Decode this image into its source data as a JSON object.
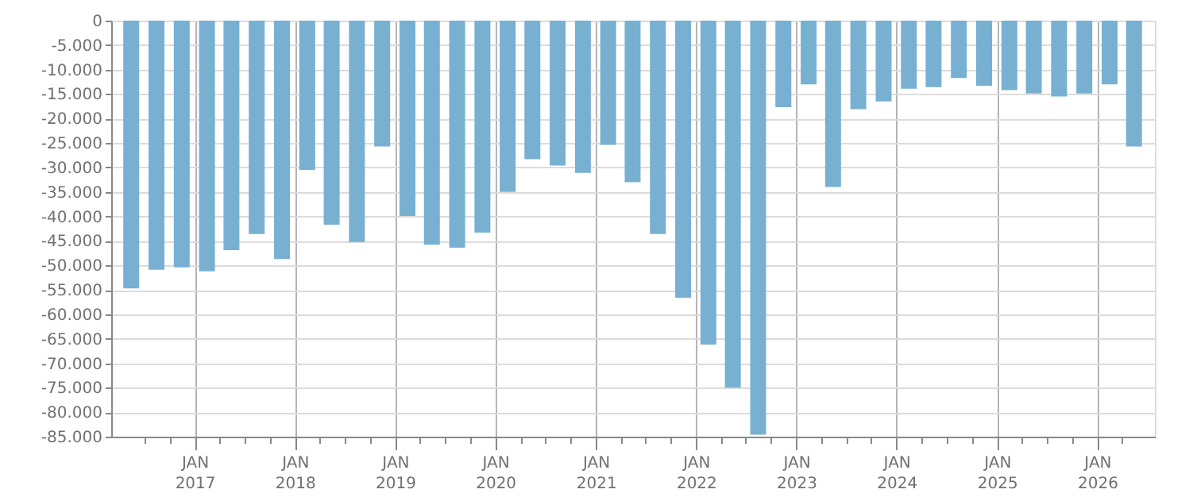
{
  "chart_data": {
    "type": "bar",
    "color": "#78b0d2",
    "x": [
      "2016-05-15",
      "2016-08-15",
      "2016-11-15",
      "2017-02-15",
      "2017-05-15",
      "2017-08-15",
      "2017-11-15",
      "2018-02-15",
      "2018-05-15",
      "2018-08-15",
      "2018-11-15",
      "2019-02-15",
      "2019-05-15",
      "2019-08-15",
      "2019-11-15",
      "2020-02-15",
      "2020-05-15",
      "2020-08-15",
      "2020-11-15",
      "2021-02-15",
      "2021-05-15",
      "2021-08-15",
      "2021-11-15",
      "2022-02-15",
      "2022-05-15",
      "2022-08-15",
      "2022-11-15",
      "2023-02-15",
      "2023-05-15",
      "2023-08-15",
      "2023-11-15",
      "2024-02-15",
      "2024-05-15",
      "2024-08-15",
      "2024-11-15",
      "2025-02-15",
      "2025-05-15",
      "2025-08-15",
      "2025-11-15",
      "2026-02-15",
      "2026-05-15"
    ],
    "values": [
      -54700,
      -50900,
      -50400,
      -51200,
      -46900,
      -43600,
      -48700,
      -30500,
      -41700,
      -45200,
      -25700,
      -39900,
      -45800,
      -46400,
      -43300,
      -35000,
      -28300,
      -29600,
      -31100,
      -25400,
      -33000,
      -43600,
      -56600,
      -66200,
      -75000,
      -84600,
      -17700,
      -13000,
      -34000,
      -18100,
      -16500,
      -13900,
      -13600,
      -11700,
      -13300,
      -14200,
      -14900,
      -15500,
      -14900,
      -13000,
      -25700
    ],
    "xlim": [
      "2016-04-01",
      "2026-07-01"
    ],
    "xticks": [
      {
        "value": "2016-07-01",
        "label": null
      },
      {
        "value": "2016-10-01",
        "label": null
      },
      {
        "value": "2017-01-01",
        "label": "JAN\n2017"
      },
      {
        "value": "2017-04-01",
        "label": null
      },
      {
        "value": "2017-07-01",
        "label": null
      },
      {
        "value": "2017-10-01",
        "label": null
      },
      {
        "value": "2018-01-01",
        "label": "JAN\n2018"
      },
      {
        "value": "2018-04-01",
        "label": null
      },
      {
        "value": "2018-07-01",
        "label": null
      },
      {
        "value": "2018-10-01",
        "label": null
      },
      {
        "value": "2019-01-01",
        "label": "JAN\n2019"
      },
      {
        "value": "2019-04-01",
        "label": null
      },
      {
        "value": "2019-07-01",
        "label": null
      },
      {
        "value": "2019-10-01",
        "label": null
      },
      {
        "value": "2020-01-01",
        "label": "JAN\n2020"
      },
      {
        "value": "2020-04-01",
        "label": null
      },
      {
        "value": "2020-07-01",
        "label": null
      },
      {
        "value": "2020-10-01",
        "label": null
      },
      {
        "value": "2021-01-01",
        "label": "JAN\n2021"
      },
      {
        "value": "2021-04-01",
        "label": null
      },
      {
        "value": "2021-07-01",
        "label": null
      },
      {
        "value": "2021-10-01",
        "label": null
      },
      {
        "value": "2022-01-01",
        "label": "JAN\n2022"
      },
      {
        "value": "2022-04-01",
        "label": null
      },
      {
        "value": "2022-07-01",
        "label": null
      },
      {
        "value": "2022-10-01",
        "label": null
      },
      {
        "value": "2023-01-01",
        "label": "JAN\n2023"
      },
      {
        "value": "2023-04-01",
        "label": null
      },
      {
        "value": "2023-07-01",
        "label": null
      },
      {
        "value": "2023-10-01",
        "label": null
      },
      {
        "value": "2024-01-01",
        "label": "JAN\n2024"
      },
      {
        "value": "2024-04-01",
        "label": null
      },
      {
        "value": "2024-07-01",
        "label": null
      },
      {
        "value": "2024-10-01",
        "label": null
      },
      {
        "value": "2025-01-01",
        "label": "JAN\n2025"
      },
      {
        "value": "2025-04-01",
        "label": null
      },
      {
        "value": "2025-07-01",
        "label": null
      },
      {
        "value": "2025-10-01",
        "label": null
      },
      {
        "value": "2026-01-01",
        "label": "JAN\n2026"
      },
      {
        "value": "2026-04-01",
        "label": null
      }
    ],
    "ylim": [
      -85000,
      0
    ],
    "yticks": [
      {
        "value": 0,
        "label": "0"
      },
      {
        "value": -5000,
        "label": "-5.000"
      },
      {
        "value": -10000,
        "label": "-10.000"
      },
      {
        "value": -15000,
        "label": "-15.000"
      },
      {
        "value": -20000,
        "label": "-20.000"
      },
      {
        "value": -25000,
        "label": "-25.000"
      },
      {
        "value": -30000,
        "label": "-30.000"
      },
      {
        "value": -35000,
        "label": "-35.000"
      },
      {
        "value": -40000,
        "label": "-40.000"
      },
      {
        "value": -45000,
        "label": "-45.000"
      },
      {
        "value": -50000,
        "label": "-50.000"
      },
      {
        "value": -55000,
        "label": "-55.000"
      },
      {
        "value": -60000,
        "label": "-60.000"
      },
      {
        "value": -65000,
        "label": "-65.000"
      },
      {
        "value": -70000,
        "label": "-70.000"
      },
      {
        "value": -75000,
        "label": "-75.000"
      },
      {
        "value": -80000,
        "label": "-80.000"
      },
      {
        "value": -85000,
        "label": "-85.000"
      }
    ],
    "grid": true
  }
}
